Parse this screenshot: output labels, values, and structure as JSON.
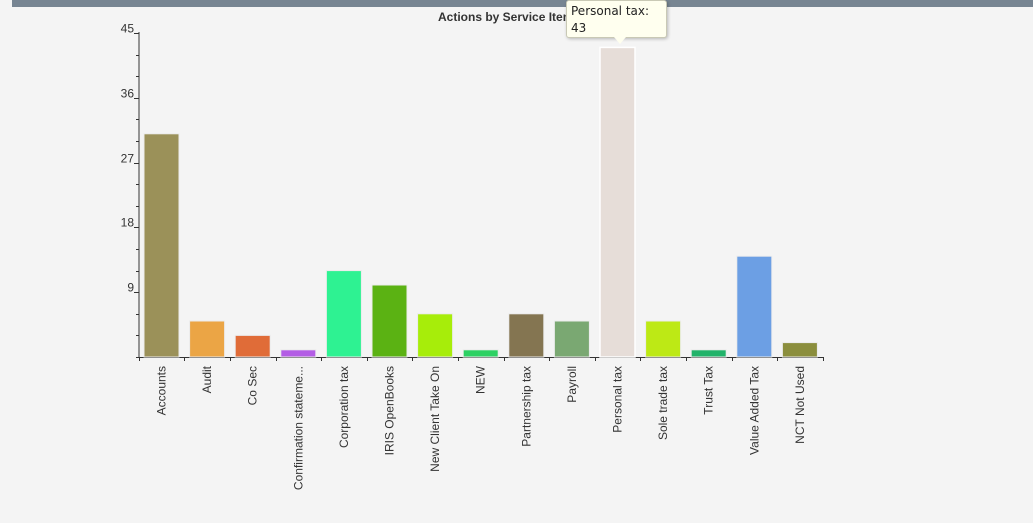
{
  "chart_data": {
    "type": "bar",
    "title": "Actions by Service Item",
    "categories": [
      "Accounts",
      "Audit",
      "Co Sec",
      "Confirmation stateme...",
      "Corporation tax",
      "IRIS OpenBooks",
      "New Client Take On",
      "NEW",
      "Partnership tax",
      "Payroll",
      "Personal tax",
      "Sole trade tax",
      "Trust Tax",
      "Value Added Tax",
      "NCT Not Used"
    ],
    "values": [
      31,
      5,
      3,
      1,
      12,
      10,
      6,
      1,
      6,
      5,
      43,
      5,
      1,
      14,
      2
    ],
    "colors": [
      "#9b9159",
      "#eba545",
      "#e06c38",
      "#b35de5",
      "#2ef292",
      "#5bb213",
      "#a7ed0a",
      "#2dd163",
      "#847551",
      "#7aa872",
      "#e6ddd8",
      "#bde915",
      "#21b36a",
      "#6c9fe4",
      "#8b8e3d"
    ],
    "ylim": [
      0,
      45
    ],
    "yticks": [
      9,
      18,
      27,
      36,
      45
    ],
    "grid": false,
    "legend": "none"
  },
  "tooltip": {
    "label": "Personal tax:",
    "value": "43"
  }
}
